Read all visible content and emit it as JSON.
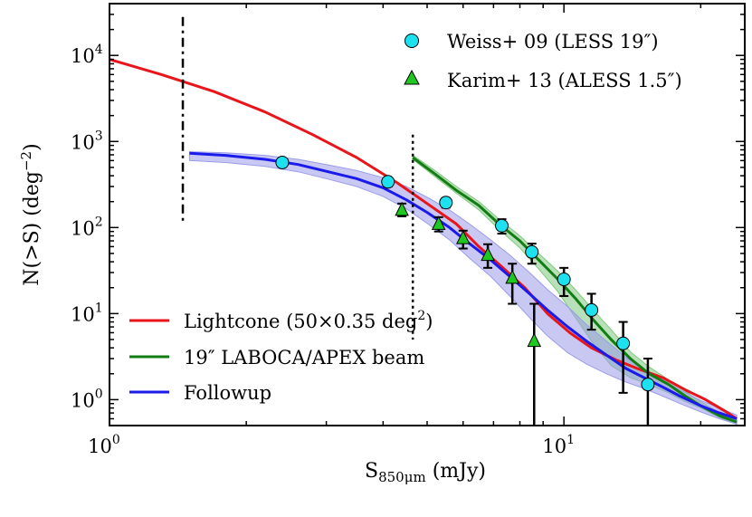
{
  "chart_data": {
    "type": "line",
    "xscale": "log",
    "yscale": "log",
    "xlim": [
      1,
      25
    ],
    "ylim": [
      0.5,
      40000
    ],
    "xlabel": {
      "base": "S",
      "sub": "850μm",
      "unit": " (mJy)"
    },
    "ylabel": {
      "main": "N(>S) (deg",
      "sup": "−2",
      "close": ")"
    },
    "xticks": [
      {
        "value": 1,
        "base": "10",
        "exp": "0"
      },
      {
        "value": 10,
        "base": "10",
        "exp": "1"
      }
    ],
    "yticks": [
      {
        "value": 1,
        "base": "10",
        "exp": "0"
      },
      {
        "value": 10,
        "base": "10",
        "exp": "1"
      },
      {
        "value": 100,
        "base": "10",
        "exp": "2"
      },
      {
        "value": 1000,
        "base": "10",
        "exp": "3"
      },
      {
        "value": 10000,
        "base": "10",
        "exp": "4"
      }
    ],
    "vlines": [
      {
        "name": "dashdot",
        "x": 1.45,
        "y_range": [
          120,
          28000
        ],
        "style": "dashdot"
      },
      {
        "name": "dotted",
        "x": 4.65,
        "y_range": [
          5,
          1200
        ],
        "style": "dotted"
      }
    ],
    "series": [
      {
        "name": "Lightcone (50×0.35 deg2)",
        "legend": "Lightcone (50×0.35 deg",
        "legend_sup": "2",
        "legend_close": ")",
        "color": "#e8161b",
        "x": [
          1.0,
          1.3,
          1.7,
          2.2,
          2.8,
          3.5,
          4.3,
          5.0,
          5.8,
          6.5,
          7.3,
          8.2,
          9.2,
          10.3,
          11.5,
          13.0,
          14.5,
          16.5,
          18.5,
          20.5,
          22.5,
          24.0
        ],
        "y": [
          9000,
          6000,
          3800,
          2200,
          1200,
          650,
          330,
          190,
          110,
          60,
          35,
          20,
          10,
          6,
          4,
          2.9,
          2.3,
          1.8,
          1.3,
          1.0,
          0.75,
          0.6
        ]
      },
      {
        "name": "19″ LABOCA/APEX beam",
        "legend": "19″ LABOCA/APEX beam",
        "color": "#127d12",
        "band_color": "#7fc87f",
        "x": [
          4.65,
          5.2,
          5.8,
          6.5,
          7.2,
          8.0,
          8.8,
          9.7,
          10.6,
          11.6,
          12.7,
          14.0,
          15.4,
          17.0,
          18.5,
          20.0,
          22.0,
          24.0
        ],
        "y": [
          650,
          420,
          270,
          180,
          110,
          70,
          42,
          25,
          15,
          8.5,
          5.0,
          3.0,
          2.0,
          1.5,
          1.1,
          0.85,
          0.65,
          0.55
        ],
        "band_lo": [
          620,
          390,
          250,
          160,
          95,
          58,
          33,
          18,
          9,
          4.5,
          2.5,
          1.8,
          1.5,
          1.2,
          0.95,
          0.8,
          0.62,
          0.52
        ],
        "band_hi": [
          690,
          460,
          300,
          200,
          125,
          80,
          50,
          31,
          19,
          11,
          6.5,
          3.6,
          2.4,
          1.7,
          1.25,
          0.95,
          0.7,
          0.58
        ]
      },
      {
        "name": "Followup",
        "legend": "Followup",
        "color": "#1a1aeb",
        "band_color": "#9b9bea",
        "x": [
          1.5,
          1.8,
          2.2,
          2.6,
          3.0,
          3.5,
          4.0,
          4.5,
          5.0,
          5.6,
          6.2,
          6.9,
          7.6,
          8.4,
          9.2,
          10.2,
          11.2,
          12.4,
          13.7,
          15.0,
          16.5,
          18.0,
          20.0,
          22.0,
          24.0
        ],
        "y": [
          730,
          690,
          620,
          540,
          450,
          370,
          290,
          210,
          150,
          100,
          65,
          42,
          27,
          17,
          11,
          7,
          4.8,
          3.3,
          2.3,
          1.8,
          1.4,
          1.1,
          0.85,
          0.7,
          0.6
        ],
        "band_lo": [
          600,
          570,
          515,
          445,
          370,
          300,
          230,
          165,
          112,
          72,
          44,
          27,
          16,
          9,
          5.5,
          3.5,
          2.6,
          2.0,
          1.6,
          1.35,
          1.1,
          0.9,
          0.72,
          0.6,
          0.52
        ],
        "band_hi": [
          760,
          740,
          690,
          620,
          540,
          460,
          380,
          300,
          225,
          160,
          110,
          72,
          48,
          30,
          19,
          12,
          7.5,
          4.8,
          3.1,
          2.2,
          1.7,
          1.3,
          0.98,
          0.8,
          0.66
        ]
      }
    ],
    "points": [
      {
        "name": "Weiss+ 09 (LESS 19″)",
        "marker": "circle",
        "color": "#1ee1f0",
        "x": [
          2.4,
          4.1,
          5.5,
          7.3,
          8.5,
          10.0,
          11.5,
          13.5,
          15.3
        ],
        "y": [
          570,
          340,
          195,
          105,
          52,
          25,
          11,
          4.5,
          1.5
        ],
        "err_lo": [
          520,
          300,
          170,
          85,
          38,
          16,
          6.5,
          1.2,
          0.5
        ],
        "err_hi": [
          620,
          380,
          220,
          125,
          65,
          34,
          17,
          8.0,
          3.0
        ]
      },
      {
        "name": "Karim+ 13 (ALESS 1.5″)",
        "marker": "triangle",
        "color": "#1ec81e",
        "x": [
          4.4,
          5.3,
          6.0,
          6.8,
          7.7,
          8.6
        ],
        "y": [
          160,
          110,
          75,
          48,
          26,
          4.8
        ],
        "err_lo": [
          135,
          90,
          57,
          34,
          13,
          0.5
        ],
        "err_hi": [
          190,
          132,
          92,
          64,
          38,
          13
        ]
      }
    ],
    "legend_upper": "top-right",
    "legend_lower": "lower-left"
  }
}
